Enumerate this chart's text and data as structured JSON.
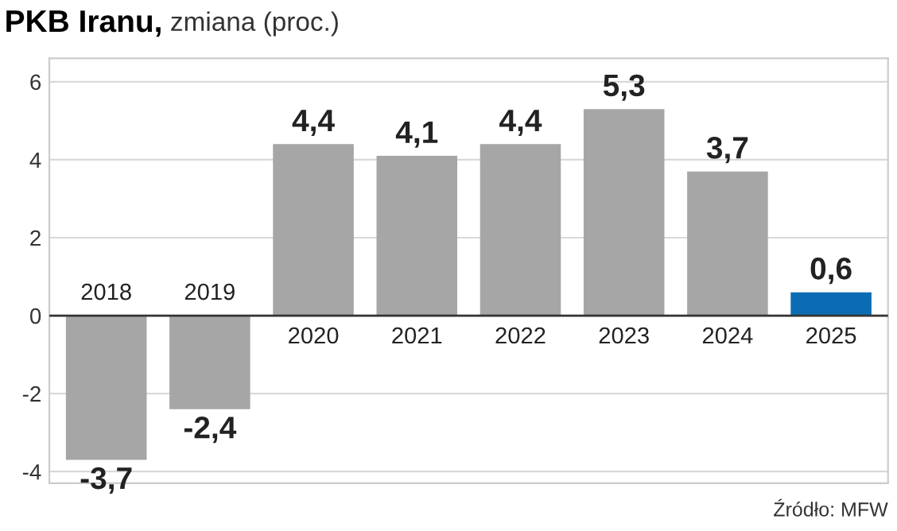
{
  "chart_data": {
    "type": "bar",
    "title": "PKB Iranu,",
    "subtitle": "zmiana (proc.)",
    "categories": [
      "2018",
      "2019",
      "2020",
      "2021",
      "2022",
      "2023",
      "2024",
      "2025"
    ],
    "values": [
      -3.7,
      -2.4,
      4.4,
      4.1,
      4.4,
      5.3,
      3.7,
      0.6
    ],
    "colors": [
      "#a6a6a6",
      "#a6a6a6",
      "#a6a6a6",
      "#a6a6a6",
      "#a6a6a6",
      "#a6a6a6",
      "#a6a6a6",
      "#0b6cb3"
    ],
    "value_labels": [
      "-3,7",
      "-2,4",
      "4,4",
      "4,1",
      "4,4",
      "5,3",
      "3,7",
      "0,6"
    ],
    "ylim": [
      -4.3,
      6.6
    ],
    "yticks": [
      -4,
      -2,
      0,
      2,
      4,
      6
    ],
    "grid": "y",
    "annotations": [
      "Źródło: MFW"
    ]
  }
}
